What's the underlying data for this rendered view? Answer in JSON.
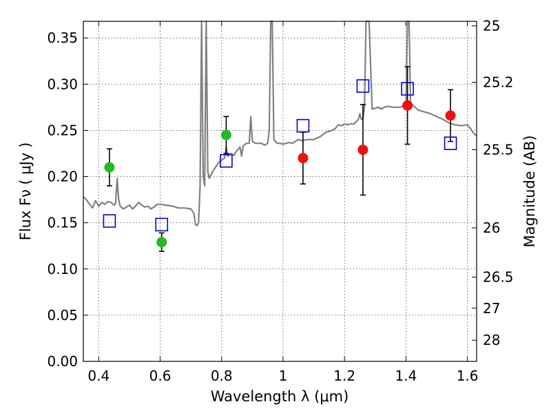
{
  "chart_data": {
    "type": "scatter",
    "title": "",
    "xlabel": "Wavelength  λ (μm)",
    "ylabel": "Flux  Fν  ( μJy )",
    "y2label": "Magnitude (AB)",
    "xlim": [
      0.35,
      1.63
    ],
    "ylim": [
      0.0,
      0.368
    ],
    "grid": true,
    "x_ticks": [
      {
        "value": 0.4,
        "label": "0.4"
      },
      {
        "value": 0.6,
        "label": "0.6"
      },
      {
        "value": 0.8,
        "label": "0.8"
      },
      {
        "value": 1.0,
        "label": "1"
      },
      {
        "value": 1.2,
        "label": "1.2"
      },
      {
        "value": 1.4,
        "label": "1.4"
      },
      {
        "value": 1.6,
        "label": "1.6"
      }
    ],
    "y_ticks": [
      {
        "value": 0.0,
        "label": "0.00"
      },
      {
        "value": 0.05,
        "label": "0.05"
      },
      {
        "value": 0.1,
        "label": "0.10"
      },
      {
        "value": 0.15,
        "label": "0.15"
      },
      {
        "value": 0.2,
        "label": "0.20"
      },
      {
        "value": 0.25,
        "label": "0.25"
      },
      {
        "value": 0.3,
        "label": "0.30"
      },
      {
        "value": 0.35,
        "label": "0.35"
      }
    ],
    "y2_ticks": [
      {
        "value": 25,
        "label": "25"
      },
      {
        "value": 25.2,
        "label": "25.2"
      },
      {
        "value": 25.5,
        "label": "25.5"
      },
      {
        "value": 26,
        "label": "26"
      },
      {
        "value": 26.5,
        "label": "26.5"
      },
      {
        "value": 27,
        "label": "27"
      },
      {
        "value": 28,
        "label": "28"
      }
    ],
    "model_spectrum": {
      "color": "#808080",
      "points": [
        [
          0.35,
          0.178
        ],
        [
          0.36,
          0.175
        ],
        [
          0.37,
          0.17
        ],
        [
          0.38,
          0.166
        ],
        [
          0.39,
          0.174
        ],
        [
          0.4,
          0.168
        ],
        [
          0.41,
          0.172
        ],
        [
          0.42,
          0.17
        ],
        [
          0.43,
          0.173
        ],
        [
          0.44,
          0.172
        ],
        [
          0.45,
          0.169
        ],
        [
          0.455,
          0.171
        ],
        [
          0.46,
          0.198
        ],
        [
          0.465,
          0.175
        ],
        [
          0.47,
          0.168
        ],
        [
          0.48,
          0.165
        ],
        [
          0.49,
          0.167
        ],
        [
          0.5,
          0.169
        ],
        [
          0.51,
          0.165
        ],
        [
          0.52,
          0.168
        ],
        [
          0.53,
          0.172
        ],
        [
          0.54,
          0.169
        ],
        [
          0.55,
          0.167
        ],
        [
          0.56,
          0.168
        ],
        [
          0.57,
          0.165
        ],
        [
          0.58,
          0.167
        ],
        [
          0.59,
          0.17
        ],
        [
          0.6,
          0.17
        ],
        [
          0.62,
          0.169
        ],
        [
          0.64,
          0.168
        ],
        [
          0.66,
          0.166
        ],
        [
          0.68,
          0.166
        ],
        [
          0.7,
          0.165
        ],
        [
          0.71,
          0.16
        ],
        [
          0.715,
          0.148
        ],
        [
          0.72,
          0.147
        ],
        [
          0.725,
          0.15
        ],
        [
          0.73,
          0.19
        ],
        [
          0.735,
          0.368
        ],
        [
          0.74,
          0.2
        ],
        [
          0.745,
          0.19
        ],
        [
          0.75,
          0.368
        ],
        [
          0.755,
          0.205
        ],
        [
          0.76,
          0.198
        ],
        [
          0.77,
          0.205
        ],
        [
          0.78,
          0.21
        ],
        [
          0.79,
          0.215
        ],
        [
          0.8,
          0.218
        ],
        [
          0.81,
          0.22
        ],
        [
          0.815,
          0.232
        ],
        [
          0.82,
          0.222
        ],
        [
          0.83,
          0.225
        ],
        [
          0.84,
          0.223
        ],
        [
          0.85,
          0.228
        ],
        [
          0.86,
          0.232
        ],
        [
          0.865,
          0.222
        ],
        [
          0.87,
          0.233
        ],
        [
          0.88,
          0.236
        ],
        [
          0.89,
          0.236
        ],
        [
          0.895,
          0.265
        ],
        [
          0.9,
          0.238
        ],
        [
          0.91,
          0.236
        ],
        [
          0.92,
          0.236
        ],
        [
          0.93,
          0.236
        ],
        [
          0.94,
          0.234
        ],
        [
          0.95,
          0.236
        ],
        [
          0.955,
          0.25
        ],
        [
          0.96,
          0.368
        ],
        [
          0.965,
          0.368
        ],
        [
          0.97,
          0.24
        ],
        [
          0.98,
          0.236
        ],
        [
          0.99,
          0.236
        ],
        [
          1.0,
          0.235
        ],
        [
          1.01,
          0.236
        ],
        [
          1.02,
          0.237
        ],
        [
          1.03,
          0.236
        ],
        [
          1.04,
          0.238
        ],
        [
          1.05,
          0.24
        ],
        [
          1.06,
          0.239
        ],
        [
          1.08,
          0.24
        ],
        [
          1.1,
          0.24
        ],
        [
          1.12,
          0.243
        ],
        [
          1.14,
          0.248
        ],
        [
          1.16,
          0.25
        ],
        [
          1.17,
          0.252
        ],
        [
          1.18,
          0.256
        ],
        [
          1.19,
          0.255
        ],
        [
          1.2,
          0.257
        ],
        [
          1.21,
          0.256
        ],
        [
          1.22,
          0.257
        ],
        [
          1.23,
          0.257
        ],
        [
          1.24,
          0.26
        ],
        [
          1.245,
          0.262
        ],
        [
          1.25,
          0.268
        ],
        [
          1.255,
          0.262
        ],
        [
          1.26,
          0.262
        ],
        [
          1.265,
          0.275
        ],
        [
          1.27,
          0.368
        ],
        [
          1.28,
          0.368
        ],
        [
          1.29,
          0.273
        ],
        [
          1.3,
          0.274
        ],
        [
          1.31,
          0.275
        ],
        [
          1.32,
          0.273
        ],
        [
          1.33,
          0.275
        ],
        [
          1.34,
          0.276
        ],
        [
          1.36,
          0.275
        ],
        [
          1.38,
          0.275
        ],
        [
          1.4,
          0.277
        ],
        [
          1.405,
          0.368
        ],
        [
          1.41,
          0.368
        ],
        [
          1.415,
          0.278
        ],
        [
          1.42,
          0.278
        ],
        [
          1.44,
          0.272
        ],
        [
          1.46,
          0.27
        ],
        [
          1.48,
          0.268
        ],
        [
          1.5,
          0.265
        ],
        [
          1.52,
          0.262
        ],
        [
          1.54,
          0.258
        ],
        [
          1.56,
          0.256
        ],
        [
          1.58,
          0.255
        ],
        [
          1.6,
          0.256
        ],
        [
          1.61,
          0.252
        ],
        [
          1.62,
          0.247
        ],
        [
          1.63,
          0.244
        ]
      ]
    },
    "series": [
      {
        "marker": "circle",
        "color": "#22bb22",
        "x": [
          0.435,
          0.605,
          0.815
        ],
        "y": [
          0.21,
          0.129,
          0.245
        ],
        "yerr": [
          0.02,
          0.01,
          0.02
        ]
      },
      {
        "marker": "circle",
        "color": "#ee1111",
        "x": [
          1.065,
          1.26,
          1.405,
          1.545
        ],
        "y": [
          0.22,
          0.229,
          0.277,
          0.266
        ],
        "yerr": [
          0.028,
          0.049,
          0.042,
          0.028
        ]
      },
      {
        "marker": "square",
        "color": "#0000cc",
        "x": [
          0.435,
          0.605,
          0.815,
          1.065,
          1.26,
          1.405,
          1.545
        ],
        "y": [
          0.152,
          0.148,
          0.217,
          0.255,
          0.298,
          0.295,
          0.236
        ]
      }
    ]
  }
}
